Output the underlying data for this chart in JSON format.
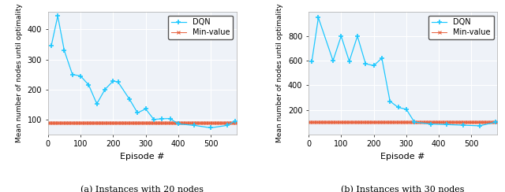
{
  "left": {
    "dqn_x": [
      10,
      30,
      50,
      75,
      100,
      125,
      150,
      175,
      200,
      215,
      250,
      275,
      300,
      325,
      350,
      375,
      400,
      450,
      500,
      550,
      575
    ],
    "dqn_y": [
      345,
      445,
      330,
      250,
      245,
      215,
      152,
      200,
      228,
      225,
      168,
      122,
      135,
      100,
      102,
      103,
      85,
      80,
      72,
      80,
      95
    ],
    "minval_level": 88,
    "ylim": [
      50,
      460
    ],
    "yticks": [
      100,
      200,
      300,
      400
    ],
    "xticks": [
      0,
      100,
      200,
      300,
      400,
      500
    ],
    "xlim": [
      0,
      580
    ],
    "xlabel": "Episode #",
    "ylabel": "Mean number of nodes until optimality",
    "caption": "(a) Instances with 20 nodes"
  },
  "right": {
    "dqn_x": [
      10,
      30,
      75,
      100,
      125,
      150,
      175,
      200,
      225,
      250,
      275,
      300,
      325,
      375,
      425,
      475,
      525,
      575
    ],
    "dqn_y": [
      595,
      950,
      600,
      800,
      595,
      800,
      575,
      560,
      620,
      270,
      220,
      205,
      100,
      85,
      80,
      75,
      70,
      100
    ],
    "minval_level": 100,
    "ylim": [
      0,
      1000
    ],
    "yticks": [
      200,
      400,
      600,
      800
    ],
    "xticks": [
      0,
      100,
      200,
      300,
      400,
      500
    ],
    "xlim": [
      0,
      580
    ],
    "xlabel": "Episode #",
    "ylabel": "Mean number of nodes until optimality",
    "caption": "(b) Instances with 30 nodes"
  },
  "dqn_color": "#1EC8FF",
  "minval_color": "#E8603C",
  "legend_dqn": "DQN",
  "legend_minval": "Min-value",
  "ax_facecolor": "#EEF2F8",
  "grid_color": "#FFFFFF",
  "marker_dqn": "+",
  "marker_minval": "x",
  "fig_width": 6.4,
  "fig_height": 2.44,
  "dpi": 100
}
